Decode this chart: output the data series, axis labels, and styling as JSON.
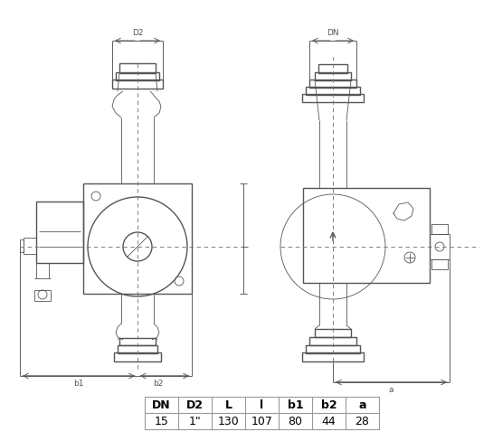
{
  "bg_color": "#ffffff",
  "line_color": "#555555",
  "dim_color": "#555555",
  "dash_color": "#777777",
  "table_headers": [
    "DN",
    "D2",
    "L",
    "l",
    "b1",
    "b2",
    "a"
  ],
  "table_values": [
    "15",
    "1\"",
    "130",
    "107",
    "80",
    "44",
    "28"
  ],
  "lw_main": 1.0,
  "lw_thin": 0.6,
  "lw_dim": 0.65
}
